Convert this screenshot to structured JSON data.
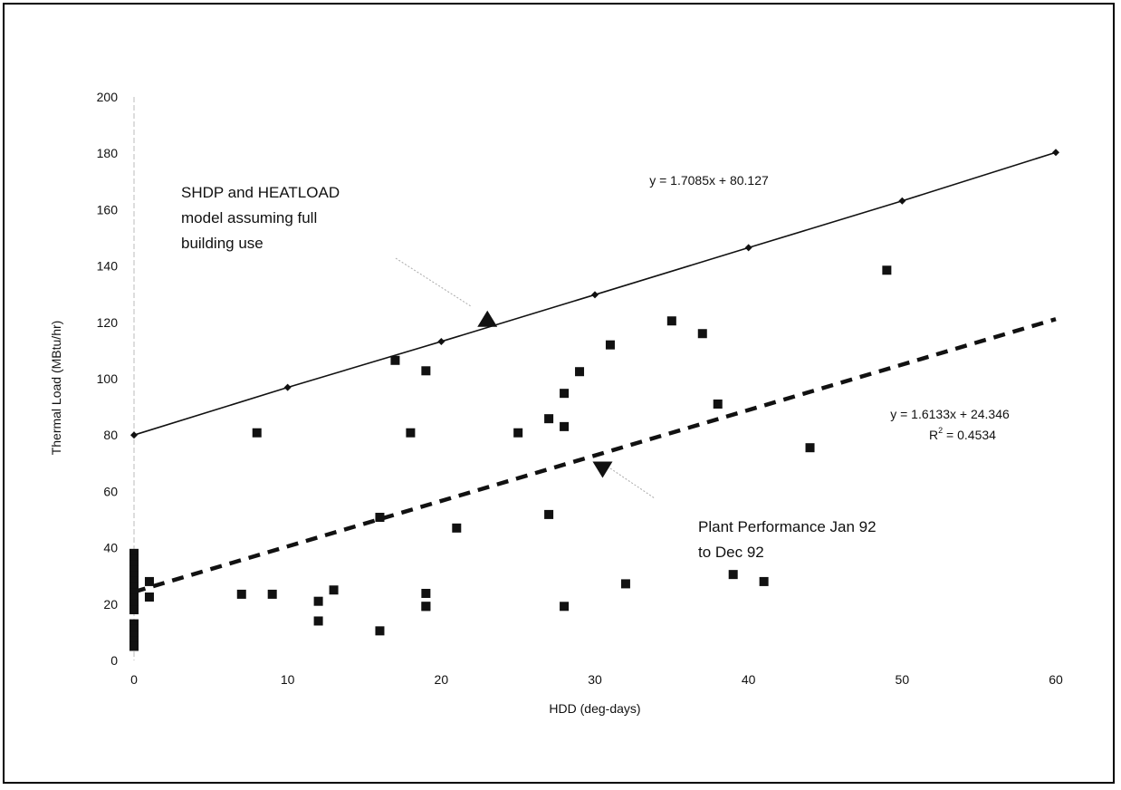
{
  "chart_data": {
    "type": "scatter",
    "xlabel": "HDD (deg-days)",
    "ylabel": "Thermal Load (MBtu/hr)",
    "xlim": [
      0,
      60
    ],
    "ylim": [
      0,
      200
    ],
    "xticks": [
      0,
      10,
      20,
      30,
      40,
      50,
      60
    ],
    "yticks": [
      0,
      20,
      40,
      60,
      80,
      100,
      120,
      140,
      160,
      180,
      200
    ],
    "grid": false,
    "series": [
      {
        "marker": "diamond",
        "line": "solid",
        "x": [
          0,
          10,
          20,
          30,
          40,
          50,
          60
        ],
        "y": [
          80,
          96.9,
          113.2,
          129.8,
          146.5,
          163.1,
          180.3
        ]
      },
      {
        "marker": "square",
        "line": "none",
        "x": [
          0,
          0,
          0,
          0,
          0,
          0,
          0,
          0,
          0,
          0,
          0,
          0,
          0,
          0,
          0,
          0,
          0,
          1,
          1,
          7,
          8,
          9,
          12,
          12,
          13,
          16,
          16,
          17,
          18,
          19,
          19,
          19,
          19,
          21,
          25,
          27,
          27,
          28,
          28,
          28,
          29,
          31,
          32,
          35,
          37,
          38,
          39,
          41,
          44,
          49
        ],
        "y": [
          38,
          36,
          34,
          32,
          30,
          28,
          26,
          24,
          22,
          20,
          18,
          13,
          12,
          11,
          9,
          7,
          5,
          28,
          22.5,
          23.5,
          80.8,
          23.5,
          21,
          14,
          25,
          50.8,
          10.5,
          106.5,
          80.8,
          102.8,
          23.8,
          19.2,
          19.2,
          47,
          80.8,
          85.8,
          51.8,
          94.8,
          83,
          19.2,
          102.5,
          112,
          27.2,
          120.5,
          116,
          91,
          30.5,
          28,
          75.5,
          138.5
        ]
      },
      {
        "marker": "none",
        "line": "dashed",
        "x": [
          0,
          60
        ],
        "y": [
          24.346,
          121.144
        ]
      }
    ],
    "annotations": [
      {
        "lines": [
          "SHDP and HEATLOAD",
          "model assuming full",
          "building use"
        ],
        "marker": "triangle-up",
        "marker_at": [
          23,
          121
        ]
      },
      {
        "lines": [
          "Plant Performance Jan 92",
          "to Dec 92"
        ],
        "marker": "triangle-down",
        "marker_at": [
          30.5,
          68
        ]
      }
    ],
    "equations": {
      "line1": "y = 1.7085x + 80.127",
      "line2": "y = 1.6133x + 24.346",
      "r2_prefix": "R",
      "r2_sup": "2",
      "r2_value": " = 0.4534"
    }
  }
}
